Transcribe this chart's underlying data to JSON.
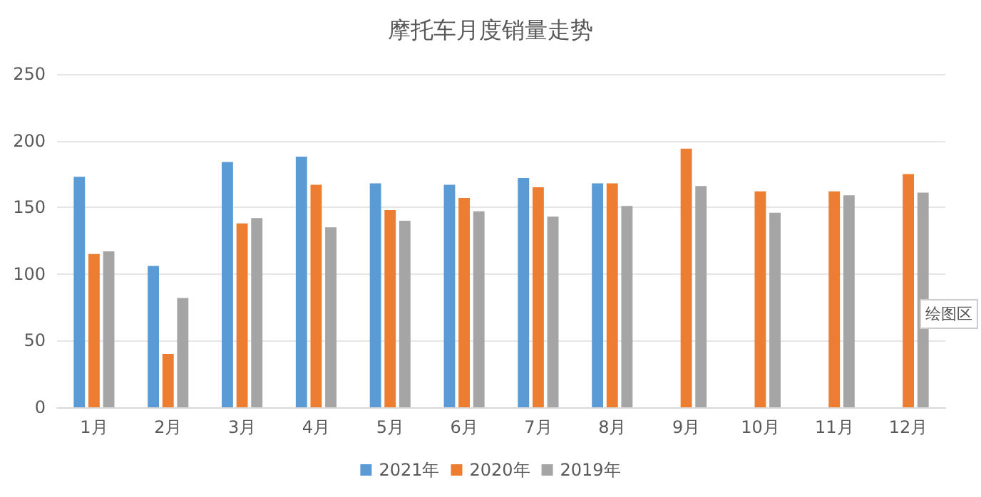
{
  "chart_data": {
    "type": "bar",
    "title": "摩托车月度销量走势",
    "categories": [
      "1月",
      "2月",
      "3月",
      "4月",
      "5月",
      "6月",
      "7月",
      "8月",
      "9月",
      "10月",
      "11月",
      "12月"
    ],
    "series": [
      {
        "name": "2021年",
        "color": "#5b9bd5",
        "values": [
          173,
          106,
          184,
          188,
          168,
          167,
          172,
          168,
          null,
          null,
          null,
          null
        ]
      },
      {
        "name": "2020年",
        "color": "#ed7d31",
        "values": [
          115,
          40,
          138,
          167,
          148,
          157,
          165,
          168,
          194,
          162,
          162,
          175
        ]
      },
      {
        "name": "2019年",
        "color": "#a5a5a5",
        "values": [
          117,
          82,
          142,
          135,
          140,
          147,
          143,
          151,
          166,
          146,
          159,
          161
        ]
      }
    ],
    "ylim": [
      0,
      250
    ],
    "yticks": [
      0,
      50,
      100,
      150,
      200,
      250
    ],
    "grid": "y",
    "legend": "bottom",
    "annotations": [
      "绘图区"
    ]
  }
}
